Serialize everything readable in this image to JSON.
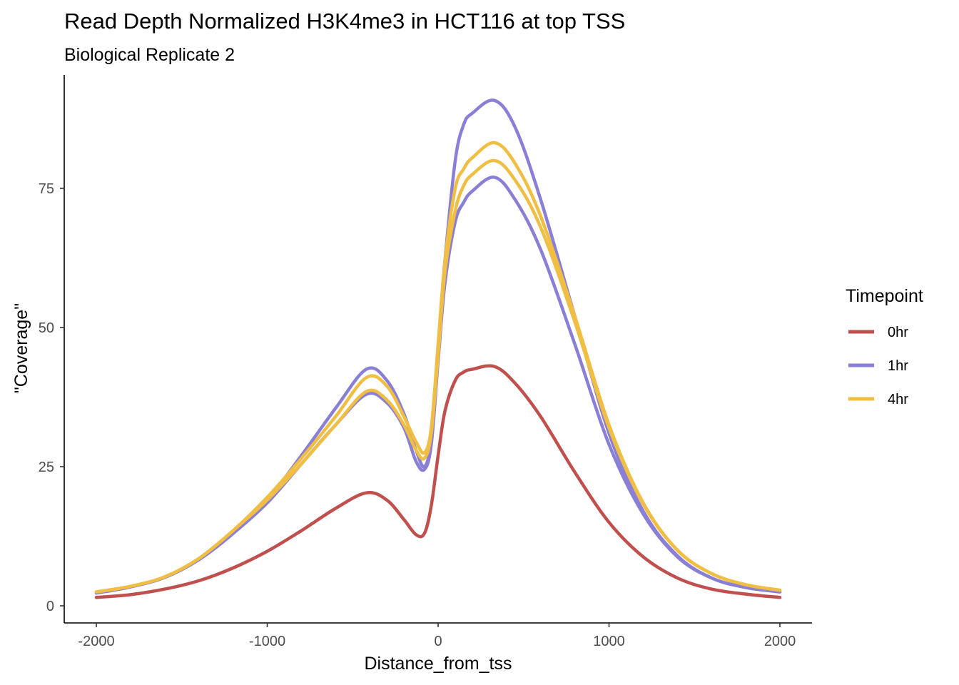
{
  "chart_data": {
    "type": "line",
    "title": "Read Depth Normalized H3K4me3 in HCT116 at top TSS",
    "subtitle": "Biological Replicate 2",
    "xlabel": "Distance_from_tss",
    "ylabel": "\"Coverage\"",
    "xlim": [
      -2000,
      2000
    ],
    "ylim": [
      0,
      91
    ],
    "x_ticks": [
      -2000,
      -1000,
      0,
      1000,
      2000
    ],
    "x_tick_labels": [
      "-2000",
      "-1000",
      "0",
      "1000",
      "2000"
    ],
    "y_ticks": [
      0,
      25,
      50,
      75
    ],
    "y_tick_labels": [
      "0",
      "25",
      "50",
      "75"
    ],
    "grid": false,
    "legend": {
      "title": "Timepoint",
      "position": "right",
      "entries": [
        {
          "label": "0hr",
          "color": "#C0504D"
        },
        {
          "label": "1hr",
          "color": "#8A7FD6"
        },
        {
          "label": "4hr",
          "color": "#EFBE43"
        }
      ]
    },
    "x": [
      -2000,
      -1800,
      -1600,
      -1400,
      -1200,
      -1000,
      -800,
      -600,
      -420,
      -300,
      -200,
      -130,
      -80,
      -40,
      0,
      40,
      100,
      150,
      200,
      330,
      450,
      600,
      800,
      1000,
      1200,
      1400,
      1600,
      1800,
      2000
    ],
    "series": [
      {
        "name": "0hr",
        "color": "#C0504D",
        "values": [
          1.5,
          2.0,
          3.0,
          4.5,
          6.8,
          9.8,
          13.5,
          17.5,
          20.3,
          19.0,
          15.5,
          12.8,
          13.0,
          18.0,
          27.0,
          35.0,
          40.5,
          42.0,
          42.5,
          43.0,
          40.0,
          34.0,
          24.0,
          15.0,
          8.8,
          5.0,
          3.0,
          2.1,
          1.5
        ]
      },
      {
        "name": "1hr",
        "color": "#8A7FD6",
        "values": [
          2.3,
          3.4,
          5.1,
          8.3,
          13.0,
          19.0,
          27.0,
          35.5,
          42.5,
          40.5,
          34.5,
          28.0,
          25.0,
          30.0,
          46.0,
          62.0,
          80.0,
          86.5,
          88.5,
          90.8,
          86.0,
          73.0,
          52.0,
          31.0,
          17.0,
          9.0,
          5.0,
          3.3,
          2.5
        ]
      },
      {
        "name": "1hr",
        "color": "#8A7FD6",
        "values": [
          2.3,
          3.4,
          5.1,
          8.3,
          13.0,
          18.5,
          25.5,
          32.5,
          38.0,
          36.5,
          32.0,
          26.0,
          24.5,
          29.0,
          44.0,
          58.0,
          69.0,
          72.5,
          74.5,
          77.0,
          73.0,
          64.0,
          47.0,
          29.0,
          16.5,
          8.8,
          5.0,
          3.3,
          2.5
        ]
      },
      {
        "name": "4hr",
        "color": "#EFBE43",
        "values": [
          2.5,
          3.5,
          5.2,
          8.5,
          13.5,
          19.5,
          26.5,
          34.0,
          41.0,
          39.5,
          34.0,
          29.5,
          27.5,
          32.0,
          47.0,
          62.0,
          75.0,
          78.5,
          80.5,
          83.2,
          79.5,
          70.0,
          52.0,
          32.5,
          18.5,
          10.0,
          5.8,
          3.8,
          2.8
        ]
      },
      {
        "name": "4hr",
        "color": "#EFBE43",
        "values": [
          2.5,
          3.5,
          5.2,
          8.5,
          13.5,
          19.0,
          25.5,
          32.5,
          38.5,
          37.0,
          32.5,
          28.0,
          26.5,
          31.0,
          45.0,
          60.0,
          71.0,
          75.5,
          77.5,
          80.0,
          76.5,
          68.0,
          51.0,
          32.0,
          18.3,
          10.0,
          5.8,
          3.8,
          2.8
        ]
      }
    ]
  }
}
